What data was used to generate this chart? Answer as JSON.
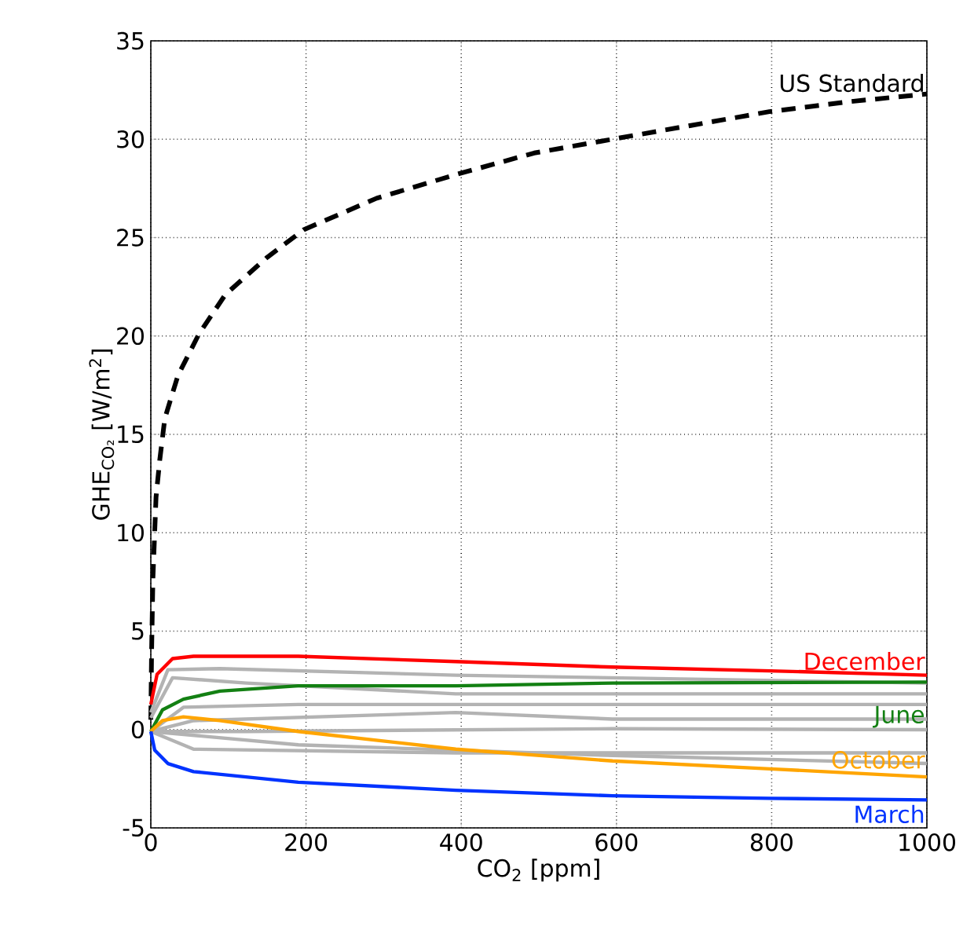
{
  "chart_data": {
    "type": "line",
    "xlabel": "CO$_{2}$ [ppm]",
    "ylabel": "GHE$_{CO₂}$ [W/m$^{2}$]",
    "xlim": [
      0,
      1000
    ],
    "ylim": [
      -5,
      35
    ],
    "xticks": [
      0,
      200,
      400,
      600,
      800,
      1000
    ],
    "yticks": [
      -5,
      0,
      5,
      10,
      15,
      20,
      25,
      30,
      35
    ],
    "grid": true,
    "series": [
      {
        "name": "US Standard",
        "color": "#000000",
        "line_style": "dashed",
        "x": [
          0,
          1,
          2.7,
          6.7,
          11.5,
          18,
          35,
          62,
          96,
          150,
          197,
          291,
          393,
          494,
          595,
          696,
          797,
          898,
          1000
        ],
        "values": [
          0.5,
          4,
          7.7,
          11.8,
          13.7,
          15.8,
          18.0,
          20.1,
          22.1,
          24.0,
          25.4,
          27.0,
          28.2,
          29.3,
          30.0,
          30.7,
          31.4,
          31.9,
          32.3
        ]
      },
      {
        "color": "#b3b3b3",
        "x": [
          0,
          22,
          89,
          393,
          1000
        ],
        "values": [
          0.86,
          3.04,
          3.09,
          2.76,
          2.36
        ]
      },
      {
        "color": "#b3b3b3",
        "x": [
          0,
          28,
          123,
          393,
          1000
        ],
        "values": [
          0.59,
          2.63,
          2.36,
          1.81,
          1.81
        ]
      },
      {
        "color": "#b3b3b3",
        "x": [
          0,
          42,
          190,
          595,
          1000
        ],
        "values": [
          -0.1,
          1.13,
          1.27,
          1.27,
          1.27
        ]
      },
      {
        "color": "#b3b3b3",
        "x": [
          0,
          55,
          393,
          595,
          1000
        ],
        "values": [
          -0.1,
          0.45,
          0.86,
          0.53,
          0.53
        ]
      },
      {
        "color": "#b3b3b3",
        "x": [
          0,
          123,
          595,
          1000
        ],
        "values": [
          -0.1,
          -0.1,
          0.04,
          -0.01
        ]
      },
      {
        "color": "#b3b3b3",
        "x": [
          0,
          55,
          393,
          1000
        ],
        "values": [
          -0.1,
          -1.0,
          -1.19,
          -1.19
        ]
      },
      {
        "color": "#b3b3b3",
        "x": [
          0,
          190,
          595,
          1000
        ],
        "values": [
          -0.1,
          -0.78,
          -1.32,
          -1.73
        ]
      },
      {
        "name": "December",
        "color": "#ff0000",
        "x": [
          0,
          8,
          28,
          55,
          190,
          393,
          595,
          798,
          1000
        ],
        "values": [
          1.27,
          2.8,
          3.6,
          3.72,
          3.72,
          3.45,
          3.17,
          2.98,
          2.76
        ]
      },
      {
        "name": "June",
        "color": "#138013",
        "x": [
          0,
          15,
          42,
          89,
          190,
          393,
          595,
          1000
        ],
        "values": [
          -0.1,
          1.0,
          1.54,
          1.95,
          2.22,
          2.22,
          2.36,
          2.41
        ]
      },
      {
        "name": "October",
        "color": "#ffa500",
        "x": [
          0,
          15,
          42,
          89,
          190,
          393,
          595,
          798,
          1000
        ],
        "values": [
          -0.1,
          0.45,
          0.64,
          0.45,
          -0.1,
          -1.0,
          -1.6,
          -2.0,
          -2.41
        ]
      },
      {
        "name": "March",
        "color": "#0033ff",
        "x": [
          0,
          5,
          22,
          55,
          190,
          393,
          595,
          798,
          1000
        ],
        "values": [
          -0.1,
          -1.05,
          -1.73,
          -2.14,
          -2.68,
          -3.09,
          -3.37,
          -3.5,
          -3.58
        ]
      }
    ]
  }
}
